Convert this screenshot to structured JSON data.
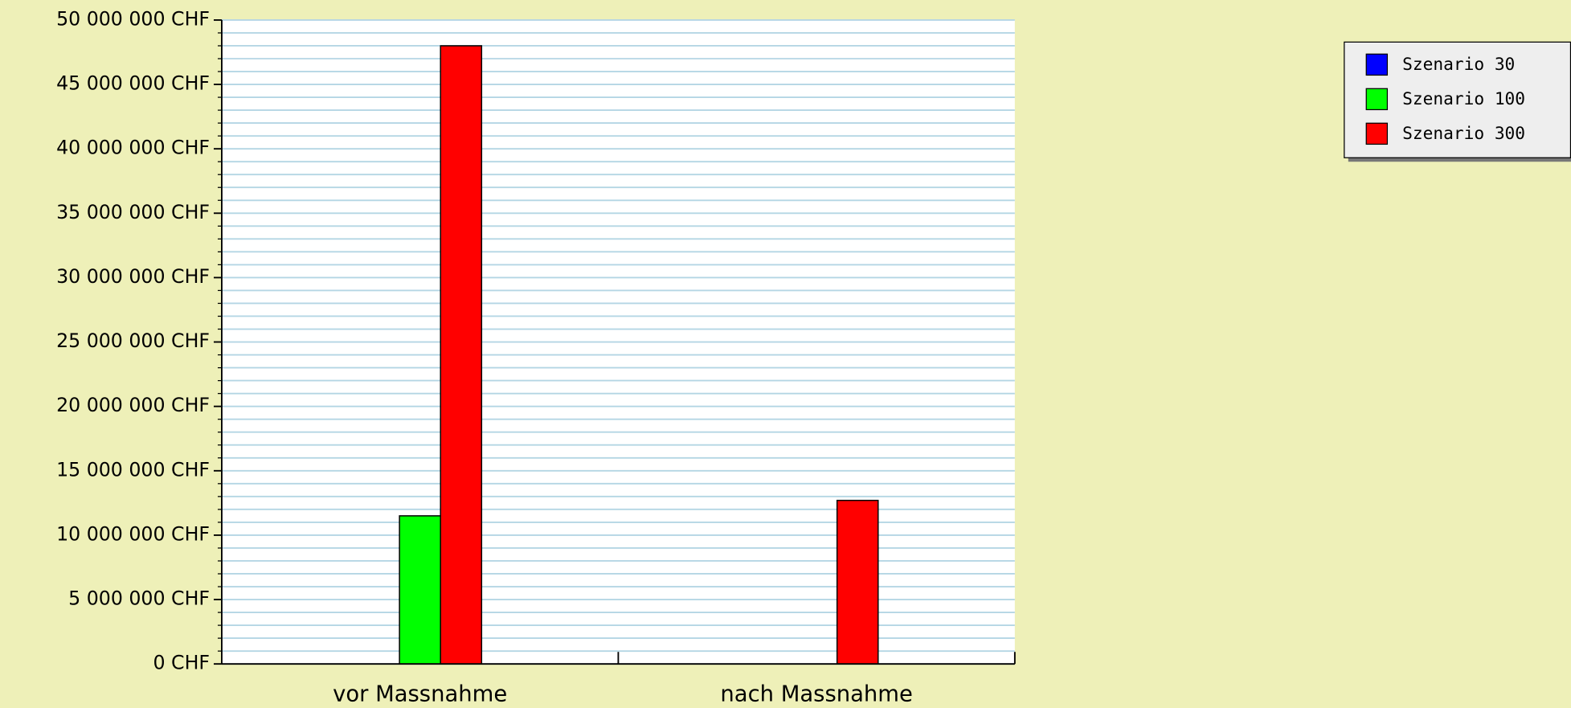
{
  "chart_data": {
    "type": "bar",
    "categories": [
      "vor Massnahme",
      "nach Massnahme"
    ],
    "series": [
      {
        "name": "Szenario 30",
        "color": "#0000ff",
        "values": [
          0,
          0
        ]
      },
      {
        "name": "Szenario 100",
        "color": "#00ff00",
        "values": [
          11500000,
          0
        ]
      },
      {
        "name": "Szenario 300",
        "color": "#ff0000",
        "values": [
          48000000,
          12700000
        ]
      }
    ],
    "ylim": [
      0,
      50000000
    ],
    "yticks": [
      {
        "value": 0,
        "label": "0 CHF"
      },
      {
        "value": 5000000,
        "label": "5 000 000 CHF"
      },
      {
        "value": 10000000,
        "label": "10 000 000 CHF"
      },
      {
        "value": 15000000,
        "label": "15 000 000 CHF"
      },
      {
        "value": 20000000,
        "label": "20 000 000 CHF"
      },
      {
        "value": 25000000,
        "label": "25 000 000 CHF"
      },
      {
        "value": 30000000,
        "label": "30 000 000 CHF"
      },
      {
        "value": 35000000,
        "label": "35 000 000 CHF"
      },
      {
        "value": 40000000,
        "label": "40 000 000 CHF"
      },
      {
        "value": 45000000,
        "label": "45 000 000 CHF"
      },
      {
        "value": 50000000,
        "label": "50 000 000 CHF"
      }
    ],
    "yminorticks": [
      1000000,
      2000000,
      3000000,
      4000000,
      6000000,
      7000000,
      8000000,
      9000000,
      11000000,
      12000000,
      13000000,
      14000000,
      16000000,
      17000000,
      18000000,
      19000000,
      21000000,
      22000000,
      23000000,
      24000000,
      26000000,
      27000000,
      28000000,
      29000000,
      31000000,
      32000000,
      33000000,
      34000000,
      36000000,
      37000000,
      38000000,
      39000000,
      41000000,
      42000000,
      43000000,
      44000000,
      46000000,
      47000000,
      48000000,
      49000000
    ],
    "grid": true,
    "legend": "upper right"
  }
}
